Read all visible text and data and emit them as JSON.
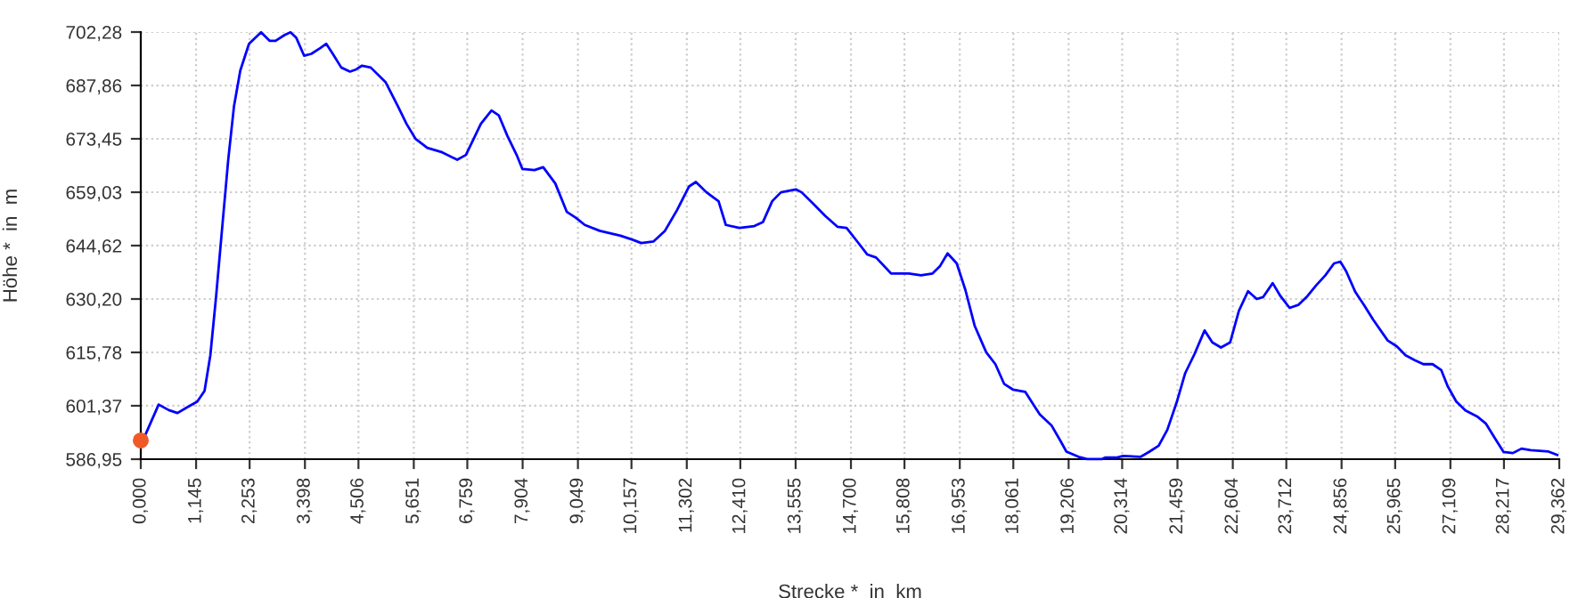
{
  "chart_data": {
    "type": "line",
    "xlabel": "Strecke *  in  km",
    "ylabel": "Höhe *  in  m",
    "grid": true,
    "legend": false,
    "xlim": [
      0,
      29.362
    ],
    "ylim": [
      586.95,
      702.28
    ],
    "xticks": [
      {
        "value": 0,
        "label": "0,000"
      },
      {
        "value": 1.145,
        "label": "1,145"
      },
      {
        "value": 2.253,
        "label": "2,253"
      },
      {
        "value": 3.398,
        "label": "3,398"
      },
      {
        "value": 4.506,
        "label": "4,506"
      },
      {
        "value": 5.651,
        "label": "5,651"
      },
      {
        "value": 6.759,
        "label": "6,759"
      },
      {
        "value": 7.904,
        "label": "7,904"
      },
      {
        "value": 9.049,
        "label": "9,049"
      },
      {
        "value": 10.157,
        "label": "10,157"
      },
      {
        "value": 11.302,
        "label": "11,302"
      },
      {
        "value": 12.41,
        "label": "12,410"
      },
      {
        "value": 13.555,
        "label": "13,555"
      },
      {
        "value": 14.7,
        "label": "14,700"
      },
      {
        "value": 15.808,
        "label": "15,808"
      },
      {
        "value": 16.953,
        "label": "16,953"
      },
      {
        "value": 18.061,
        "label": "18,061"
      },
      {
        "value": 19.206,
        "label": "19,206"
      },
      {
        "value": 20.314,
        "label": "20,314"
      },
      {
        "value": 21.459,
        "label": "21,459"
      },
      {
        "value": 22.604,
        "label": "22,604"
      },
      {
        "value": 23.712,
        "label": "23,712"
      },
      {
        "value": 24.856,
        "label": "24,856"
      },
      {
        "value": 25.965,
        "label": "25,965"
      },
      {
        "value": 27.109,
        "label": "27,109"
      },
      {
        "value": 28.217,
        "label": "28,217"
      },
      {
        "value": 29.362,
        "label": "29,362"
      }
    ],
    "yticks": [
      {
        "value": 586.95,
        "label": "586,95"
      },
      {
        "value": 601.37,
        "label": "601,37"
      },
      {
        "value": 615.78,
        "label": "615,78"
      },
      {
        "value": 630.2,
        "label": "630,20"
      },
      {
        "value": 644.62,
        "label": "644,62"
      },
      {
        "value": 659.03,
        "label": "659,03"
      },
      {
        "value": 673.45,
        "label": "673,45"
      },
      {
        "value": 687.86,
        "label": "687,86"
      },
      {
        "value": 702.28,
        "label": "702,28"
      }
    ],
    "series": [
      {
        "color": "#0000ff",
        "marker": "none",
        "line_style": "solid",
        "x": [
          0.02,
          0.37,
          0.58,
          0.76,
          0.95,
          1.17,
          1.32,
          1.44,
          1.56,
          1.69,
          1.81,
          1.93,
          2.06,
          2.24,
          2.49,
          2.67,
          2.79,
          2.98,
          3.1,
          3.22,
          3.38,
          3.53,
          3.72,
          3.84,
          3.96,
          4.15,
          4.33,
          4.46,
          4.58,
          4.76,
          5.07,
          5.32,
          5.5,
          5.69,
          5.93,
          6.24,
          6.55,
          6.73,
          7.04,
          7.26,
          7.41,
          7.59,
          7.78,
          7.9,
          8.15,
          8.33,
          8.58,
          8.82,
          9.01,
          9.19,
          9.5,
          9.93,
          10.18,
          10.36,
          10.61,
          10.85,
          11.1,
          11.35,
          11.49,
          11.71,
          11.96,
          12.11,
          12.39,
          12.7,
          12.88,
          13.07,
          13.25,
          13.56,
          13.68,
          13.93,
          14.17,
          14.42,
          14.61,
          14.85,
          15.04,
          15.22,
          15.53,
          15.9,
          16.15,
          16.39,
          16.54,
          16.7,
          16.89,
          17.07,
          17.26,
          17.5,
          17.69,
          17.87,
          18.06,
          18.31,
          18.49,
          18.61,
          18.85,
          19.04,
          19.16,
          19.41,
          19.59,
          19.9,
          19.96,
          20.21,
          20.33,
          20.7,
          20.88,
          21.07,
          21.25,
          21.44,
          21.62,
          21.81,
          22.02,
          22.18,
          22.36,
          22.55,
          22.73,
          22.92,
          23.1,
          23.23,
          23.43,
          23.59,
          23.78,
          23.96,
          24.15,
          24.33,
          24.52,
          24.7,
          24.83,
          24.95,
          25.14,
          25.32,
          25.51,
          25.81,
          26.0,
          26.18,
          26.37,
          26.55,
          26.74,
          26.92,
          27.05,
          27.23,
          27.42,
          27.66,
          27.84,
          28.03,
          28.21,
          28.4,
          28.58,
          28.77,
          29.14,
          29.32
        ],
        "values": [
          591.3,
          601.7,
          600.2,
          599.4,
          600.9,
          602.5,
          605.4,
          615.0,
          631.0,
          650.2,
          667.8,
          682.3,
          691.9,
          699.1,
          702.2,
          699.9,
          699.9,
          701.5,
          702.2,
          700.7,
          695.9,
          696.4,
          698.0,
          699.1,
          696.7,
          692.7,
          691.6,
          692.2,
          693.2,
          692.7,
          688.7,
          682.3,
          677.5,
          673.4,
          671.0,
          669.8,
          667.8,
          669.1,
          677.5,
          681.1,
          679.8,
          674.2,
          669.1,
          665.3,
          665.0,
          665.8,
          661.4,
          653.7,
          652.1,
          650.2,
          648.6,
          647.3,
          646.2,
          645.3,
          645.7,
          648.6,
          654.2,
          660.6,
          661.8,
          659.0,
          656.6,
          650.2,
          649.4,
          649.9,
          651.0,
          656.6,
          659.0,
          659.8,
          659.0,
          655.8,
          652.6,
          649.7,
          649.4,
          645.4,
          642.2,
          641.4,
          637.1,
          637.1,
          636.6,
          637.1,
          639.0,
          642.5,
          639.8,
          632.6,
          623.0,
          615.8,
          612.6,
          607.3,
          605.7,
          605.1,
          601.4,
          599.0,
          596.1,
          591.8,
          589.0,
          587.6,
          587.0,
          587.0,
          587.4,
          587.4,
          587.8,
          587.6,
          589.0,
          590.6,
          594.9,
          602.2,
          610.2,
          615.3,
          621.7,
          618.5,
          617.1,
          618.5,
          627.0,
          632.3,
          630.2,
          630.7,
          634.5,
          631.0,
          627.8,
          628.6,
          631.0,
          633.9,
          636.6,
          639.8,
          640.3,
          637.7,
          632.1,
          628.6,
          624.6,
          619.0,
          617.4,
          615.0,
          613.7,
          612.6,
          612.6,
          611.0,
          606.7,
          602.5,
          600.1,
          598.5,
          596.6,
          592.6,
          588.9,
          588.6,
          589.8,
          589.4,
          589.0,
          588.1
        ]
      },
      {
        "type": "scatter",
        "color": "#f05a28",
        "marker": "circle",
        "x": [
          0
        ],
        "values": [
          592.0
        ]
      }
    ]
  }
}
